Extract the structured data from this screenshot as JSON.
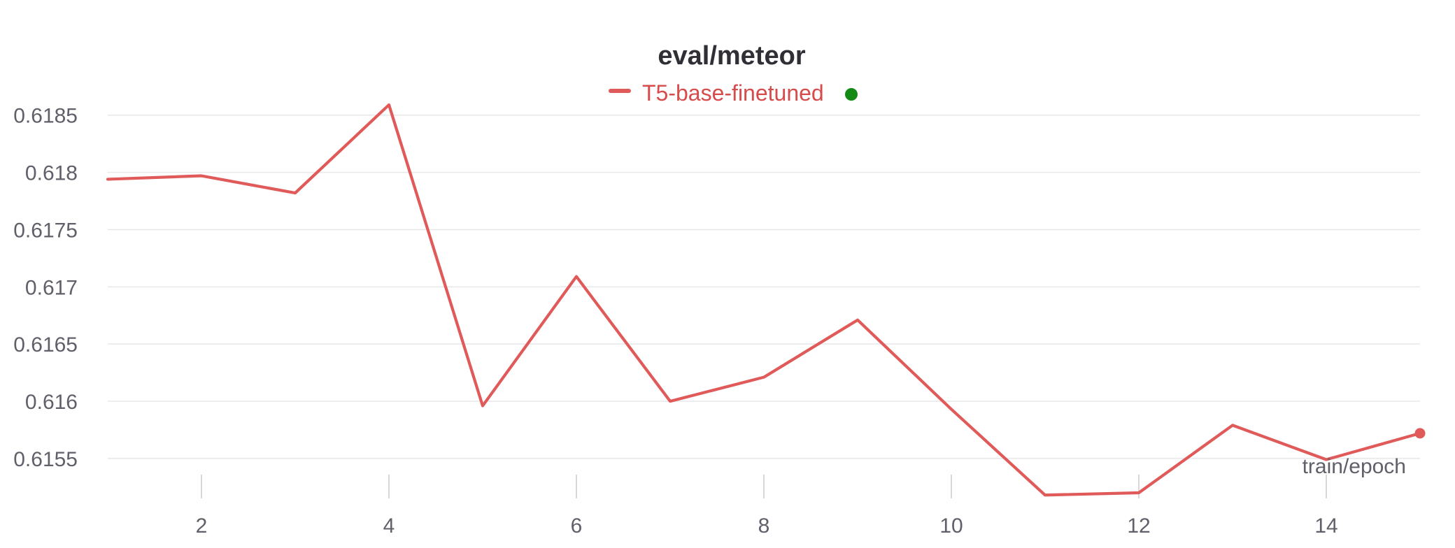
{
  "chart_data": {
    "type": "line",
    "title": "eval/meteor",
    "xlabel": "train/epoch",
    "ylabel": "",
    "legend": {
      "placement": "top-center",
      "entries": [
        {
          "name": "T5-base-finetuned",
          "color": "#e05a5a",
          "status_color": "#138a13"
        }
      ]
    },
    "x_ticks": [
      2,
      4,
      6,
      8,
      10,
      12,
      14
    ],
    "y_ticks": [
      0.6155,
      0.616,
      0.6165,
      0.617,
      0.6175,
      0.618,
      0.6185
    ],
    "y_tick_labels": [
      "0.6155",
      "0.616",
      "0.6165",
      "0.617",
      "0.6175",
      "0.618",
      "0.6185"
    ],
    "xlim": [
      1,
      15
    ],
    "ylim": [
      0.6152,
      0.6187
    ],
    "grid": {
      "horizontal": true,
      "vertical": false
    },
    "series": [
      {
        "name": "T5-base-finetuned",
        "color": "#e05a5a",
        "x": [
          1,
          2,
          3,
          4,
          5,
          6,
          7,
          8,
          9,
          10,
          11,
          12,
          13,
          14,
          15
        ],
        "values": [
          0.61794,
          0.61797,
          0.61782,
          0.61859,
          0.61596,
          0.61709,
          0.616,
          0.61621,
          0.61671,
          0.61593,
          0.61518,
          0.6152,
          0.61579,
          0.61549,
          0.61572
        ]
      }
    ]
  }
}
